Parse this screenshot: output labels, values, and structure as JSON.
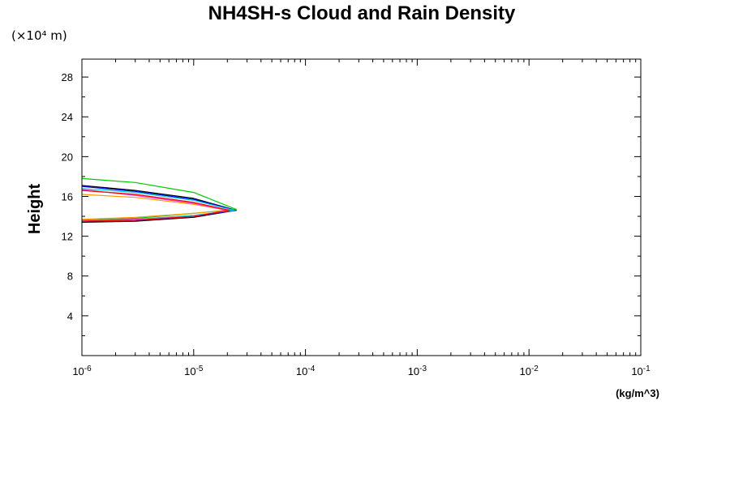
{
  "chart_data": {
    "type": "line",
    "title": "NH4SH-s Cloud and Rain Density",
    "ylabel": "Height",
    "y_scale_note": "(×10⁴ m)",
    "xunit": "(kg/m^3)",
    "x_scale": "log",
    "xlim": [
      1e-06,
      0.1
    ],
    "ylim": [
      0,
      29.8
    ],
    "x_ticks": [
      {
        "value": 1e-06,
        "base": "10",
        "exp": "-6"
      },
      {
        "value": 1e-05,
        "base": "10",
        "exp": "-5"
      },
      {
        "value": 0.0001,
        "base": "10",
        "exp": "-4"
      },
      {
        "value": 0.001,
        "base": "10",
        "exp": "-3"
      },
      {
        "value": 0.01,
        "base": "10",
        "exp": "-2"
      },
      {
        "value": 0.1,
        "base": "10",
        "exp": "-1"
      }
    ],
    "y_ticks": [
      "4",
      "8",
      "12",
      "16",
      "20",
      "24",
      "28"
    ],
    "y_tick_values": [
      4,
      8,
      12,
      16,
      20,
      24,
      28
    ],
    "y_minor_step": 2,
    "grid": false,
    "series": [
      {
        "color": "#000000",
        "points": [
          [
            1e-06,
            17.1
          ],
          [
            3e-06,
            16.6
          ],
          [
            1e-05,
            15.8
          ],
          [
            2.4e-05,
            14.6
          ],
          [
            1e-05,
            13.9
          ],
          [
            3e-06,
            13.5
          ],
          [
            1e-06,
            13.4
          ]
        ]
      },
      {
        "color": "#0000ff",
        "points": [
          [
            1e-06,
            17.0
          ],
          [
            3e-06,
            16.5
          ],
          [
            1e-05,
            15.7
          ],
          [
            2.4e-05,
            14.6
          ],
          [
            1e-05,
            14.0
          ],
          [
            3e-06,
            13.6
          ],
          [
            1e-06,
            13.5
          ]
        ]
      },
      {
        "color": "#00c800",
        "points": [
          [
            1e-06,
            17.8
          ],
          [
            3e-06,
            17.4
          ],
          [
            1e-05,
            16.4
          ],
          [
            2.4e-05,
            14.7
          ],
          [
            1e-05,
            14.3
          ],
          [
            3e-06,
            13.8
          ],
          [
            1e-06,
            13.6
          ]
        ]
      },
      {
        "color": "#00d7d7",
        "points": [
          [
            1e-06,
            16.8
          ],
          [
            3e-06,
            16.4
          ],
          [
            1e-05,
            15.6
          ],
          [
            2.3e-05,
            14.6
          ],
          [
            1e-05,
            14.1
          ],
          [
            3e-06,
            13.7
          ],
          [
            1e-06,
            13.5
          ]
        ]
      },
      {
        "color": "#ff9900",
        "points": [
          [
            1e-06,
            16.2
          ],
          [
            3e-06,
            15.9
          ],
          [
            1e-05,
            15.2
          ],
          [
            2e-05,
            14.6
          ],
          [
            1e-05,
            14.3
          ],
          [
            3e-06,
            13.9
          ],
          [
            1e-06,
            13.7
          ]
        ]
      },
      {
        "color": "#ff33cc",
        "points": [
          [
            1e-06,
            16.7
          ],
          [
            3e-06,
            16.1
          ],
          [
            1e-05,
            15.3
          ],
          [
            2e-05,
            14.6
          ],
          [
            1e-05,
            14.0
          ],
          [
            3e-06,
            13.7
          ],
          [
            1e-06,
            13.6
          ]
        ]
      },
      {
        "color": "#ff0000",
        "points": [
          [
            1e-06,
            16.6
          ],
          [
            3e-06,
            16.2
          ],
          [
            1e-05,
            15.4
          ],
          [
            2.1e-05,
            14.6
          ],
          [
            1e-05,
            14.0
          ],
          [
            3e-06,
            13.6
          ],
          [
            1e-06,
            13.5
          ]
        ]
      }
    ]
  }
}
